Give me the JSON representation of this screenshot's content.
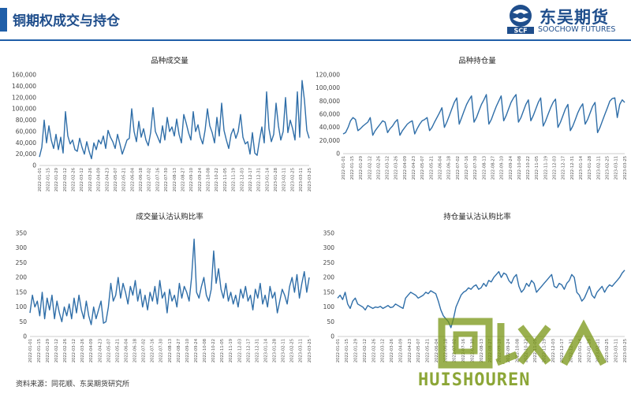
{
  "header": {
    "title": "铜期权成交与持仓",
    "accent_color": "#1f5ea8",
    "logo": {
      "name_cn": "东吴期货",
      "name_en": "SOOCHOW FUTURES",
      "mark_letters": "SCF",
      "icon": "scf-logo-icon"
    }
  },
  "source": "资料来源：同花顺、东吴期货研究所",
  "watermark": {
    "text": "HUISHOUREN",
    "icon": "recycle-logo-icon"
  },
  "chart_data": [
    {
      "type": "line",
      "title": "品种成交量",
      "color": "#2f6ea8",
      "ylim": [
        0,
        160000
      ],
      "yticks": [
        0,
        20000,
        40000,
        60000,
        80000,
        100000,
        120000,
        140000,
        160000
      ],
      "ytick_labels": [
        "0",
        "20,000",
        "40,000",
        "60,000",
        "80,000",
        "100,000",
        "120,000",
        "140,000",
        "160,000"
      ],
      "x_tick_labels": [
        "2022-01-01",
        "2022-01-15",
        "2022-01-29",
        "2022-02-12",
        "2022-02-26",
        "2022-03-12",
        "2022-03-26",
        "2022-04-09",
        "2022-04-23",
        "2022-05-07",
        "2022-05-21",
        "2022-06-04",
        "2022-06-18",
        "2022-07-02",
        "2022-07-16",
        "2022-07-30",
        "2022-08-13",
        "2022-08-27",
        "2022-09-10",
        "2022-09-24",
        "2022-10-08",
        "2022-10-22",
        "2022-11-05",
        "2022-11-19",
        "2022-12-03",
        "2022-12-17",
        "2022-12-31",
        "2023-01-14",
        "2023-01-28",
        "2023-02-11",
        "2023-02-25",
        "2023-03-11",
        "2023-03-25"
      ],
      "values": [
        15000,
        32000,
        80000,
        40000,
        70000,
        45000,
        30000,
        55000,
        28000,
        50000,
        22000,
        95000,
        52000,
        38000,
        45000,
        28000,
        25000,
        48000,
        32000,
        20000,
        42000,
        25000,
        12000,
        40000,
        28000,
        45000,
        38000,
        52000,
        30000,
        62000,
        50000,
        42000,
        30000,
        55000,
        38000,
        20000,
        32000,
        45000,
        48000,
        100000,
        60000,
        42000,
        78000,
        50000,
        65000,
        45000,
        35000,
        58000,
        102000,
        60000,
        50000,
        40000,
        70000,
        45000,
        85000,
        60000,
        68000,
        52000,
        82000,
        55000,
        40000,
        90000,
        75000,
        58000,
        45000,
        95000,
        60000,
        72000,
        50000,
        38000,
        62000,
        100000,
        70000,
        58000,
        40000,
        85000,
        52000,
        110000,
        62000,
        45000,
        30000,
        55000,
        65000,
        48000,
        60000,
        90000,
        50000,
        38000,
        42000,
        20000,
        58000,
        22000,
        18000,
        45000,
        68000,
        40000,
        130000,
        65000,
        42000,
        55000,
        110000,
        70000,
        45000,
        60000,
        120000,
        58000,
        80000,
        65000,
        45000,
        130000,
        50000,
        150000,
        115000,
        62000,
        48000
      ]
    },
    {
      "type": "line",
      "title": "品种持仓量",
      "color": "#2f6ea8",
      "ylim": [
        0,
        120000
      ],
      "yticks": [
        0,
        20000,
        40000,
        60000,
        80000,
        100000,
        120000
      ],
      "ytick_labels": [
        "0",
        "20,000",
        "40,000",
        "60,000",
        "80,000",
        "100,000",
        "120,000"
      ],
      "x_tick_labels": [
        "2022-01-01",
        "2022-01-15",
        "2022-01-29",
        "2022-02-12",
        "2022-02-26",
        "2022-03-12",
        "2022-03-26",
        "2022-04-09",
        "2022-04-23",
        "2022-05-07",
        "2022-05-21",
        "2022-06-04",
        "2022-06-18",
        "2022-07-02",
        "2022-07-16",
        "2022-07-30",
        "2022-08-13",
        "2022-08-27",
        "2022-09-10",
        "2022-09-24",
        "2022-10-08",
        "2022-10-22",
        "2022-11-05",
        "2022-11-19",
        "2022-12-03",
        "2022-12-17",
        "2022-12-31",
        "2023-01-14",
        "2023-01-28",
        "2023-02-11",
        "2023-02-25",
        "2023-03-11",
        "2023-03-25"
      ],
      "values": [
        30000,
        32000,
        40000,
        50000,
        55000,
        52000,
        35000,
        38000,
        42000,
        45000,
        48000,
        55000,
        28000,
        35000,
        40000,
        45000,
        50000,
        48000,
        32000,
        38000,
        42000,
        48000,
        52000,
        28000,
        35000,
        40000,
        45000,
        48000,
        50000,
        30000,
        38000,
        45000,
        50000,
        52000,
        55000,
        35000,
        40000,
        48000,
        55000,
        62000,
        70000,
        40000,
        48000,
        58000,
        68000,
        78000,
        85000,
        45000,
        55000,
        65000,
        75000,
        82000,
        88000,
        48000,
        55000,
        65000,
        75000,
        82000,
        90000,
        45000,
        52000,
        62000,
        72000,
        80000,
        88000,
        50000,
        58000,
        68000,
        78000,
        85000,
        90000,
        48000,
        55000,
        65000,
        75000,
        82000,
        50000,
        58000,
        68000,
        78000,
        85000,
        42000,
        50000,
        60000,
        70000,
        78000,
        83000,
        40000,
        48000,
        58000,
        68000,
        75000,
        35000,
        42000,
        52000,
        62000,
        70000,
        76000,
        45000,
        52000,
        62000,
        72000,
        78000,
        32000,
        40000,
        50000,
        60000,
        70000,
        80000,
        84000,
        85000,
        55000,
        75000,
        82000,
        78000
      ]
    },
    {
      "type": "line",
      "title": "成交量认沽认购比率",
      "color": "#2f6ea8",
      "ylim": [
        0,
        350
      ],
      "yticks": [
        0,
        50,
        100,
        150,
        200,
        250,
        300,
        350
      ],
      "ytick_labels": [
        "0",
        "50",
        "100",
        "150",
        "200",
        "250",
        "300",
        "350"
      ],
      "x_tick_labels": [
        "2022-01-01",
        "2022-01-15",
        "2022-01-29",
        "2022-02-12",
        "2022-02-26",
        "2022-03-12",
        "2022-03-26",
        "2022-04-09",
        "2022-04-23",
        "2022-05-07",
        "2022-05-21",
        "2022-06-04",
        "2022-06-18",
        "2022-07-02",
        "2022-07-16",
        "2022-07-30",
        "2022-08-13",
        "2022-08-27",
        "2022-09-10",
        "2022-09-24",
        "2022-10-08",
        "2022-10-22",
        "2022-11-05",
        "2022-11-19",
        "2022-12-03",
        "2022-12-17",
        "2022-12-31",
        "2023-01-14",
        "2023-01-28",
        "2023-02-11",
        "2023-02-25",
        "2023-03-11",
        "2023-03-25"
      ],
      "values": [
        80,
        140,
        100,
        120,
        70,
        150,
        60,
        130,
        90,
        140,
        60,
        120,
        80,
        50,
        100,
        70,
        110,
        60,
        130,
        80,
        140,
        90,
        60,
        120,
        70,
        40,
        100,
        60,
        90,
        120,
        45,
        50,
        100,
        180,
        120,
        140,
        200,
        130,
        180,
        150,
        110,
        170,
        140,
        190,
        120,
        160,
        100,
        140,
        90,
        150,
        120,
        170,
        110,
        190,
        130,
        150,
        80,
        160,
        120,
        140,
        100,
        180,
        130,
        170,
        150,
        120,
        200,
        330,
        150,
        130,
        170,
        200,
        140,
        120,
        160,
        290,
        180,
        230,
        160,
        130,
        180,
        120,
        150,
        110,
        140,
        100,
        160,
        130,
        170,
        120,
        140,
        90,
        160,
        130,
        180,
        110,
        140,
        100,
        170,
        130,
        150,
        80,
        120,
        160,
        140,
        110,
        170,
        200,
        150,
        210,
        130,
        180,
        220,
        150,
        200
      ]
    },
    {
      "type": "line",
      "title": "持仓量认沽认购比率",
      "color": "#2f6ea8",
      "ylim": [
        0,
        350
      ],
      "yticks": [
        0,
        50,
        100,
        150,
        200,
        250,
        300,
        350
      ],
      "ytick_labels": [
        "0",
        "50",
        "100",
        "150",
        "200",
        "250",
        "300",
        "350"
      ],
      "x_tick_labels": [
        "2022-01-01",
        "2022-01-15",
        "2022-01-29",
        "2022-02-12",
        "2022-02-26",
        "2022-03-12",
        "2022-03-26",
        "2022-04-09",
        "2022-04-23",
        "2022-05-07",
        "2022-05-21",
        "2022-06-04",
        "2022-06-18",
        "2022-07-02",
        "2022-07-16",
        "2022-07-30",
        "2022-08-13",
        "2022-08-27",
        "2022-09-10",
        "2022-09-24",
        "2022-10-08",
        "2022-10-22",
        "2022-11-05",
        "2022-11-19",
        "2022-12-03",
        "2022-12-17",
        "2022-12-31",
        "2023-01-14",
        "2023-01-28",
        "2023-02-11",
        "2023-02-25",
        "2023-03-11",
        "2023-03-25"
      ],
      "values": [
        130,
        140,
        125,
        150,
        110,
        95,
        120,
        130,
        110,
        105,
        100,
        90,
        105,
        100,
        95,
        100,
        98,
        102,
        95,
        100,
        105,
        98,
        100,
        110,
        105,
        100,
        95,
        130,
        140,
        150,
        145,
        140,
        130,
        135,
        140,
        150,
        145,
        155,
        150,
        145,
        120,
        90,
        70,
        60,
        50,
        30,
        60,
        100,
        120,
        140,
        150,
        155,
        165,
        160,
        170,
        175,
        160,
        165,
        180,
        170,
        190,
        185,
        200,
        210,
        220,
        200,
        215,
        210,
        190,
        180,
        200,
        210,
        170,
        150,
        160,
        180,
        170,
        190,
        180,
        150,
        160,
        170,
        180,
        190,
        200,
        210,
        170,
        165,
        180,
        175,
        160,
        180,
        190,
        210,
        200,
        150,
        140,
        120,
        130,
        150,
        170,
        140,
        130,
        150,
        160,
        170,
        150,
        165,
        175,
        170,
        180,
        190,
        200,
        215,
        225
      ]
    }
  ]
}
